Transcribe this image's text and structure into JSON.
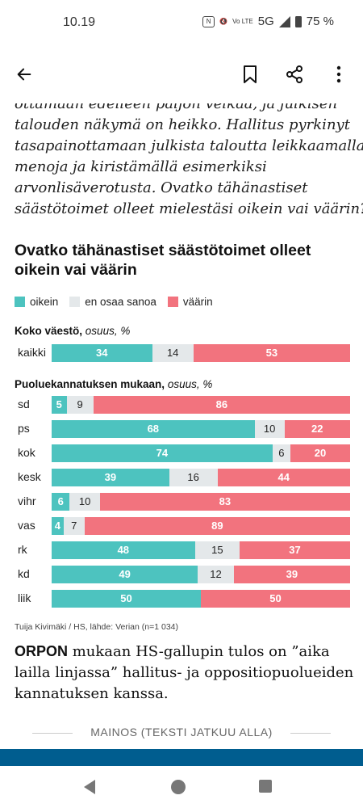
{
  "status_bar": {
    "time": "10.19",
    "network": "5G",
    "volte": "Vo LTE",
    "battery": "75 %"
  },
  "toolbar": {
    "icons": [
      "arrow-left-icon",
      "bookmark-icon",
      "share-icon",
      "more-vert-icon"
    ]
  },
  "article": {
    "quote_lines": [
      "ottamaan edelleen paljon velkaa, ja julkisen",
      "talouden näkymä on heikko. Hallitus pyrkinyt",
      "tasapainottamaan julkista taloutta leikkaamalla",
      "menoja ja kiristämällä esimerkiksi",
      "arvonlisäverotusta. Ovatko tähänastiset",
      "säästötoimet olleet mielestäsi oikein vai väärin?”"
    ],
    "body_lead": "ORPON",
    "body_lines": [
      " mukaan HS-gallupin tulos on ”aika",
      "lailla linjassa” hallitus- ja oppositiopuolueiden",
      "kannatuksen kanssa."
    ],
    "ad_label": "MAINOS (TEKSTI JATKUU ALLA)"
  },
  "chart_data": {
    "type": "bar",
    "stacked": true,
    "orientation": "horizontal",
    "title_lines": [
      "Ovatko tähänastiset säästötoimet olleet",
      "oikein vai väärin"
    ],
    "legend": [
      "oikein",
      "en osaa sanoa",
      "väärin"
    ],
    "legend_placement": "top-left",
    "colors": {
      "oikein": "#4dc3bf",
      "en_osaa_sanoa": "#e4e8ea",
      "vaarin": "#f2737e"
    },
    "groups": [
      {
        "heading": "Koko väestö,",
        "unit": "osuus, %",
        "categories": [
          "kaikki"
        ],
        "oikein": [
          34
        ],
        "en_osaa_sanoa": [
          14
        ],
        "vaarin": [
          53
        ]
      },
      {
        "heading": "Puoluekannatuksen mukaan,",
        "unit": "osuus, %",
        "categories": [
          "sd",
          "ps",
          "kok",
          "kesk",
          "vihr",
          "vas",
          "rk",
          "kd",
          "liik"
        ],
        "oikein": [
          5,
          68,
          74,
          39,
          6,
          4,
          48,
          49,
          50
        ],
        "en_osaa_sanoa": [
          9,
          10,
          6,
          16,
          10,
          7,
          15,
          12,
          null
        ],
        "vaarin": [
          86,
          22,
          20,
          44,
          83,
          89,
          37,
          39,
          50
        ]
      }
    ],
    "source": "Tuija Kivimäki / HS, lähde: Verian (n=1 034)"
  }
}
